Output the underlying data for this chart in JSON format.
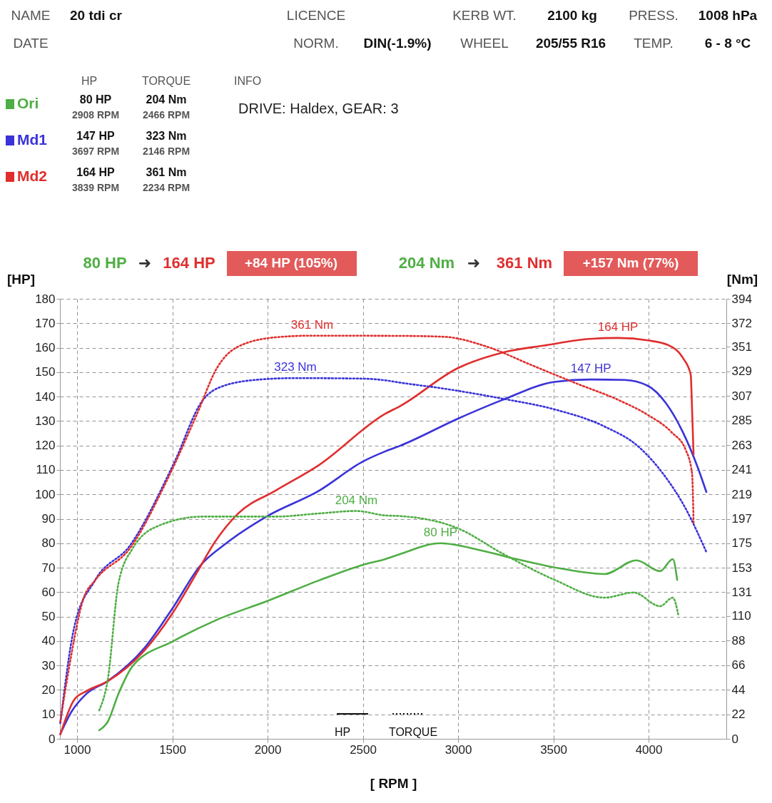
{
  "chart_data": {
    "type": "line",
    "xlabel": "[ RPM ]",
    "ylabel": "[HP]",
    "y2label": "[Nm]",
    "xlim": [
      910,
      4408
    ],
    "xticks": [
      1000,
      1500,
      2000,
      2500,
      3000,
      3500,
      4000
    ],
    "ylim": [
      0,
      180
    ],
    "yticks": [
      0,
      10,
      20,
      30,
      40,
      50,
      60,
      70,
      80,
      90,
      100,
      110,
      120,
      130,
      140,
      150,
      160,
      170,
      180
    ],
    "y2lim": [
      0,
      394
    ],
    "y2ticks": [
      0,
      22,
      44,
      66,
      88,
      110,
      131,
      153,
      175,
      197,
      219,
      241,
      263,
      285,
      307,
      329,
      351,
      372,
      394
    ],
    "grid": true,
    "legend": "top left",
    "series": [
      {
        "name": "Ori",
        "color": "#4fae44",
        "line_style": "solid",
        "x": [
          1116,
          1161,
          1217,
          1292,
          1506,
          1734,
          1996,
          2270,
          2502,
          2618,
          2693,
          2908,
          3124,
          3307,
          3536,
          3768,
          3936,
          4060,
          4127,
          4150
        ],
        "values": [
          3.5,
          7,
          18.4,
          29.8,
          40,
          48.7,
          56.3,
          64.8,
          71.2,
          73.5,
          75.5,
          80,
          77,
          73.5,
          69.7,
          67.4,
          73,
          68.6,
          73.5,
          65
        ],
        "value_labels": [
          null,
          null,
          null,
          null,
          null,
          null,
          null,
          null,
          null,
          null,
          null,
          "80 HP",
          null,
          null,
          null,
          null,
          null,
          null,
          null,
          null
        ]
      },
      {
        "name": "Md1",
        "color": "#3a33d8",
        "line_style": "solid",
        "x": [
          912,
          970,
          1049,
          1161,
          1352,
          1506,
          1644,
          1783,
          1996,
          2270,
          2502,
          2618,
          2693,
          3000,
          3232,
          3506,
          3697,
          3873,
          3996,
          4090,
          4180,
          4258,
          4303
        ],
        "values": [
          2,
          11,
          18.4,
          23.6,
          37,
          54,
          70.6,
          80,
          91,
          101.5,
          113.5,
          117.6,
          119.8,
          131,
          138.6,
          146,
          147,
          146.8,
          144.4,
          137.4,
          125.4,
          111,
          101
        ],
        "value_labels": [
          null,
          null,
          null,
          null,
          null,
          null,
          null,
          null,
          null,
          null,
          null,
          null,
          null,
          null,
          null,
          null,
          "147 HP",
          null,
          null,
          null,
          null,
          null,
          null
        ]
      },
      {
        "name": "Md2",
        "color": "#e02e2e",
        "line_style": "solid",
        "x": [
          912,
          985,
          1049,
          1161,
          1352,
          1506,
          1629,
          1719,
          1843,
          2041,
          2270,
          2618,
          2693,
          3000,
          3232,
          3461,
          3689,
          3839,
          3996,
          4105,
          4180,
          4221,
          4228,
          4236
        ],
        "values": [
          1.8,
          16,
          19.5,
          23.6,
          36,
          52,
          68,
          80,
          92,
          101.5,
          112,
          133,
          136,
          151.7,
          158,
          161,
          163.6,
          164,
          163,
          161,
          155.8,
          149,
          135,
          116.4
        ],
        "value_labels": [
          null,
          null,
          null,
          null,
          null,
          null,
          null,
          null,
          null,
          null,
          null,
          null,
          null,
          null,
          null,
          null,
          null,
          "164 HP",
          null,
          null,
          null,
          null,
          null,
          null
        ]
      },
      {
        "color": "#4fae44",
        "axis": "y2",
        "line_style": "dotted",
        "x": [
          1116,
          1161,
          1217,
          1292,
          1431,
          1659,
          2041,
          2270,
          2466,
          2618,
          2693,
          3000,
          3232,
          3506,
          3768,
          3921,
          4060,
          4127,
          4157
        ],
        "values": [
          25.5,
          53,
          139,
          170.5,
          191,
          199,
          199,
          201.8,
          204,
          200,
          199.5,
          188.4,
          166,
          142.4,
          126.4,
          131,
          118.8,
          126.4,
          110
        ],
        "value_labels": [
          null,
          null,
          null,
          null,
          null,
          null,
          null,
          null,
          "204 Nm",
          null,
          null,
          null,
          null,
          null,
          null,
          null,
          null,
          null,
          null
        ]
      },
      {
        "color": "#3a33d8",
        "axis": "y2",
        "line_style": "dotted",
        "x": [
          912,
          985,
          1094,
          1277,
          1506,
          1659,
          1768,
          1966,
          2146,
          2502,
          2618,
          2693,
          2925,
          3232,
          3506,
          3768,
          3951,
          4075,
          4195,
          4303
        ],
        "values": [
          14,
          100,
          141.8,
          173,
          245.9,
          303,
          316,
          321.8,
          323,
          322.5,
          321,
          319,
          313.6,
          304.6,
          295,
          279.7,
          261,
          237.6,
          206,
          167.3
        ],
        "value_labels": [
          null,
          null,
          null,
          null,
          null,
          null,
          null,
          null,
          "323 Nm",
          null,
          null,
          null,
          null,
          null,
          null,
          null,
          null,
          null,
          null,
          null
        ]
      },
      {
        "color": "#e02e2e",
        "axis": "y2",
        "line_style": "dotted",
        "x": [
          912,
          955,
          1034,
          1094,
          1277,
          1476,
          1629,
          1734,
          1843,
          2041,
          2234,
          2693,
          2925,
          3154,
          3386,
          3614,
          3843,
          3996,
          4120,
          4195,
          4228,
          4236
        ],
        "values": [
          15.3,
          60.7,
          125.8,
          141.8,
          170.5,
          233,
          290.6,
          332,
          351,
          359.5,
          361,
          360.8,
          360,
          351,
          334.6,
          318.7,
          303.3,
          290,
          274.6,
          258.6,
          237.6,
          193.5
        ],
        "value_labels": [
          null,
          null,
          null,
          null,
          null,
          null,
          null,
          null,
          null,
          null,
          "361 Nm",
          null,
          null,
          null,
          null,
          null,
          null,
          null,
          null,
          null,
          null,
          null
        ]
      }
    ],
    "annotations": [
      "NAME",
      "20 tdi cr",
      "LICENCE",
      "KERB WT.",
      "2100 kg",
      "PRESS.",
      "1008 hPa",
      "DATE",
      "NORM.",
      "DIN(-1.9%)",
      "WHEEL",
      "205/55 R16",
      "TEMP.",
      "6 - 8 °C",
      "HP",
      "TORQUE",
      "80 HP",
      "204 Nm",
      "2908 RPM",
      "2466 RPM",
      "147 HP",
      "323 Nm",
      "3697 RPM",
      "2146 RPM",
      "164 HP",
      "361 Nm",
      "3839 RPM",
      "2234 RPM",
      "INFO",
      "DRIVE: Haldex,  GEAR: 3",
      "80 HP",
      "➜",
      "164 HP",
      "+84 HP  (105%)",
      "204 Nm",
      "➜",
      "361 Nm",
      "+157 Nm  (77%)",
      "HP",
      "TORQUE"
    ]
  }
}
